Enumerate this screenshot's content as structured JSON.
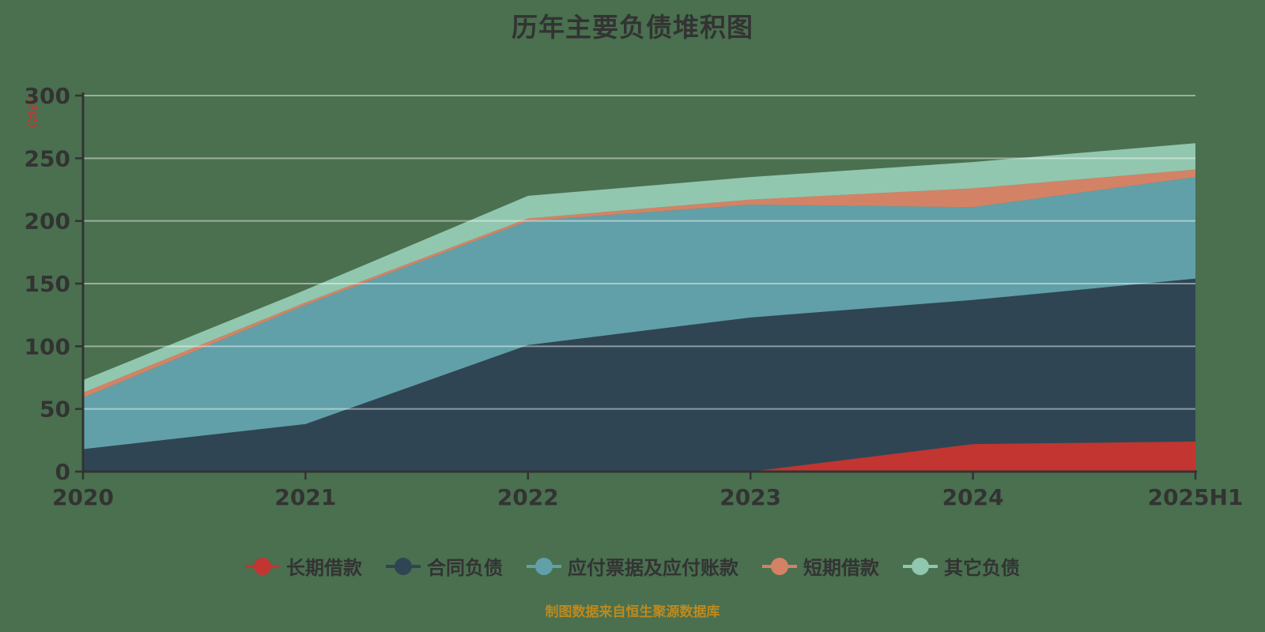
{
  "title": "历年主要负债堆积图",
  "footer": {
    "text": "制图数据来自恒生聚源数据库"
  },
  "colors": {
    "background": "#4a704f",
    "title_text": "#333333",
    "axis_text": "#333333",
    "axis_line": "#333333",
    "gridline": "rgba(255,255,255,0.45)",
    "y_axis_name": "#c23531",
    "legend_text": "#333333",
    "footer_text": "#bd8a1e"
  },
  "chart_data": {
    "type": "area",
    "stacked": true,
    "grid": true,
    "legend_position": "bottom",
    "title": "历年主要负债堆积图",
    "ylabel": "(亿元)",
    "ylim": [
      0,
      300
    ],
    "ytick_interval": 50,
    "ytick_labels": [
      "0",
      "50",
      "100",
      "150",
      "200",
      "250",
      "300"
    ],
    "categories": [
      "2020",
      "2021",
      "2022",
      "2023",
      "2024",
      "2025H1"
    ],
    "series": [
      {
        "name": "长期借款",
        "color": "#c23531",
        "values": [
          0,
          0,
          0,
          0,
          22,
          24
        ]
      },
      {
        "name": "合同负债",
        "color": "#2f4554",
        "values": [
          18,
          38,
          101,
          123,
          115,
          130
        ]
      },
      {
        "name": "应付票据及应付账款",
        "color": "#61a0a8",
        "values": [
          41,
          95,
          99,
          90,
          74,
          81
        ]
      },
      {
        "name": "短期借款",
        "color": "#d48265",
        "values": [
          4,
          2,
          2,
          4,
          15,
          6
        ]
      },
      {
        "name": "其它负债",
        "color": "#91c7ae",
        "values": [
          10,
          10,
          18,
          18,
          21,
          21
        ]
      }
    ]
  }
}
